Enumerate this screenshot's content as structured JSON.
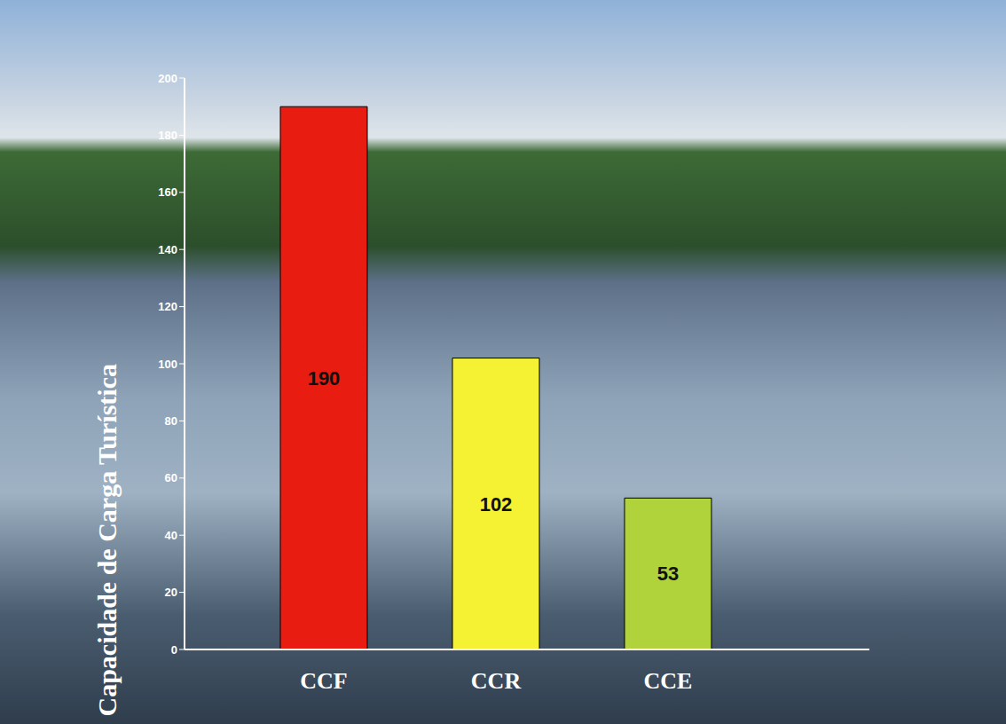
{
  "chart_data": {
    "type": "bar",
    "ylabel": "Capacidade de Carga Turística",
    "categories": [
      "CCF",
      "CCR",
      "CCE"
    ],
    "values": [
      190,
      102,
      53
    ],
    "colors": [
      "#e81c10",
      "#f4f233",
      "#b0d23a"
    ],
    "ylim": [
      0,
      200
    ],
    "yticks": [
      0,
      20,
      40,
      60,
      80,
      100,
      120,
      140,
      160,
      180,
      200
    ],
    "data_labels": true,
    "grid": false
  }
}
